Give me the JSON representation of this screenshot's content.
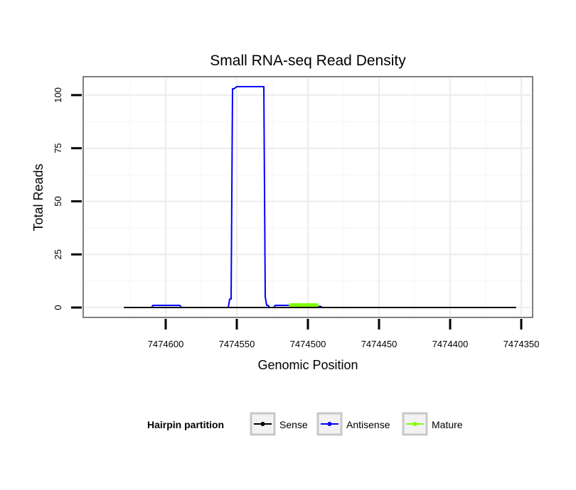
{
  "chart_data": {
    "type": "line",
    "title": "Small RNA-seq Read Density",
    "xlabel": "Genomic Position",
    "ylabel": "Total Reads",
    "x_reversed": true,
    "xlim": [
      7474657,
      7474343
    ],
    "ylim": [
      -4,
      108
    ],
    "xticks": [
      7474600,
      7474550,
      7474500,
      7474450,
      7474400,
      7474350
    ],
    "xtick_labels": [
      "7474600",
      "7474550",
      "7474500",
      "7474450",
      "7474400",
      "7474350"
    ],
    "yticks": [
      0,
      25,
      50,
      75,
      100
    ],
    "ytick_labels": [
      "0",
      "25",
      "50",
      "75",
      "100"
    ],
    "grid": true,
    "legend": {
      "title": "Hairpin partition",
      "position": "bottom",
      "entries": [
        "Sense",
        "Antisense",
        "Mature"
      ]
    },
    "series": [
      {
        "name": "Sense",
        "color": "#000000",
        "x": [
          7474629,
          7474354
        ],
        "y": [
          0,
          0
        ]
      },
      {
        "name": "Antisense",
        "color": "#0000ff",
        "x": [
          7474629,
          7474610,
          7474609,
          7474590,
          7474589,
          7474556,
          7474555,
          7474554,
          7474553,
          7474552,
          7474550,
          7474549,
          7474531,
          7474530,
          7474529,
          7474528,
          7474527,
          7474524,
          7474523,
          7474494,
          7474493,
          7474491,
          7474490,
          7474354
        ],
        "y": [
          0,
          0,
          1,
          1,
          0,
          0,
          4,
          4,
          103,
          103,
          104,
          104,
          104,
          5,
          1,
          1,
          0,
          0,
          1,
          1,
          0.5,
          0.5,
          0,
          0
        ]
      },
      {
        "name": "Mature",
        "color": "#7fff00",
        "x": [
          7474512,
          7474494
        ],
        "y": [
          1,
          1
        ]
      }
    ]
  }
}
